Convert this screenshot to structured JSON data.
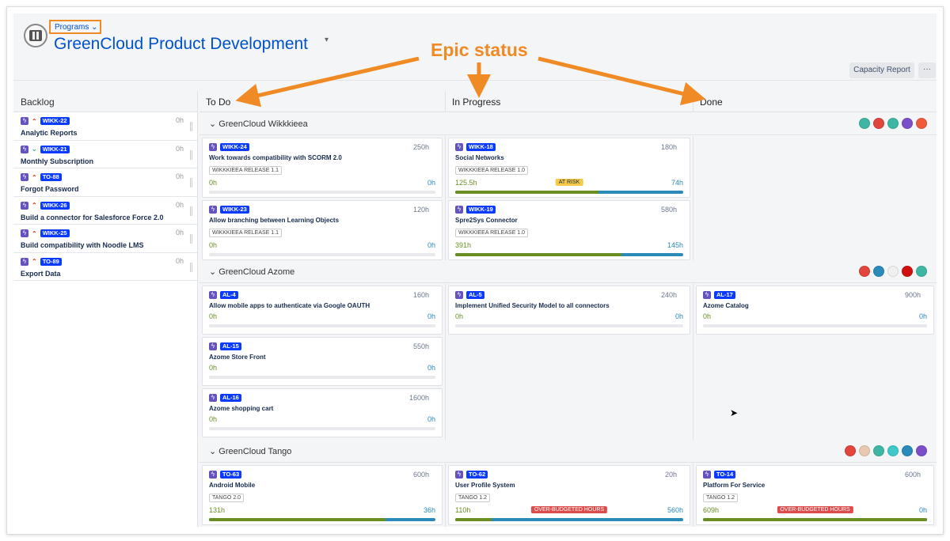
{
  "header": {
    "programs_label": "Programs",
    "title": "GreenCloud Product Development",
    "capacity_report": "Capacity Report",
    "more": "···"
  },
  "annotation": {
    "text": "Epic status",
    "color": "#f08a24"
  },
  "colors": {
    "accent": "#0052cc",
    "spent": "#6b8e23",
    "remaining": "#2a8ab8",
    "epic": "#6554c0",
    "key": "#0b3bff",
    "at_risk": "#f7c948",
    "over_budget": "#de4b4b"
  },
  "backlog": {
    "title": "Backlog",
    "items": [
      {
        "key": "WIKK-22",
        "title": "Analytic Reports",
        "hours": "0h",
        "priority": "highest"
      },
      {
        "key": "WIKK-21",
        "title": "Monthly Subscription",
        "hours": "0h",
        "priority": "lowest"
      },
      {
        "key": "TO-88",
        "title": "Forgot Password",
        "hours": "0h",
        "priority": "highest"
      },
      {
        "key": "WIKK-26",
        "title": "Build a connector for Salesforce Force 2.0",
        "hours": "0h",
        "priority": "highest"
      },
      {
        "key": "WIKK-25",
        "title": "Build compatibility with Noodle LMS",
        "hours": "0h",
        "priority": "highest"
      },
      {
        "key": "TO-89",
        "title": "Export Data",
        "hours": "0h",
        "priority": "highest"
      }
    ]
  },
  "columns": [
    "To Do",
    "In Progress",
    "Done"
  ],
  "groups": [
    {
      "name": "GreenCloud Wikkkieea",
      "avatars": [
        "#3fb5a3",
        "#e2453c",
        "#3fb5a3",
        "#7b4fc9",
        "#ef5a3c"
      ],
      "columns": [
        [
          {
            "key": "WIKK-24",
            "title": "Work towards compatibility with SCORM 2.0",
            "hours": "250h",
            "release": "WIKKKIEEA RELEASE 1.1",
            "spent": "0h",
            "remaining": "0h",
            "progress": 0
          },
          {
            "key": "WIKK-23",
            "title": "Allow branching between Learning Objects",
            "hours": "120h",
            "release": "WIKKKIEEA RELEASE 1.1",
            "spent": "0h",
            "remaining": "0h",
            "progress": 0
          }
        ],
        [
          {
            "key": "WIKK-18",
            "title": "Social Networks",
            "hours": "180h",
            "release": "WIKKKIEEA RELEASE 1.0",
            "spent": "125.5h",
            "remaining": "74h",
            "progress": 0.63,
            "badge": "AT RISK",
            "badge_type": "at_risk"
          },
          {
            "key": "WIKK-19",
            "title": "Spre2Sys Connector",
            "hours": "580h",
            "release": "WIKKKIEEA RELEASE 1.0",
            "spent": "391h",
            "remaining": "145h",
            "progress": 0.73
          }
        ],
        []
      ]
    },
    {
      "name": "GreenCloud Azome",
      "avatars": [
        "#e2453c",
        "#2a8ab8",
        "#f0f0f0",
        "#d01010",
        "#3fb5a3"
      ],
      "columns": [
        [
          {
            "key": "AL-4",
            "title": "Allow mobile apps to authenticate via Google OAUTH",
            "hours": "160h",
            "spent": "0h",
            "remaining": "0h",
            "progress": 0
          },
          {
            "key": "AL-15",
            "title": "Azome Store Front",
            "hours": "550h",
            "spent": "0h",
            "remaining": "0h",
            "progress": 0
          },
          {
            "key": "AL-16",
            "title": "Azome shopping cart",
            "hours": "1600h",
            "spent": "0h",
            "remaining": "0h",
            "progress": 0
          }
        ],
        [
          {
            "key": "AL-5",
            "title": "Implement Unified Security Model to all connectors",
            "hours": "240h",
            "spent": "0h",
            "remaining": "0h",
            "progress": 0
          }
        ],
        [
          {
            "key": "AL-17",
            "title": "Azome Catalog",
            "hours": "900h",
            "spent": "0h",
            "remaining": "0h",
            "progress": 0
          }
        ]
      ]
    },
    {
      "name": "GreenCloud Tango",
      "avatars": [
        "#e2453c",
        "#e8c8b0",
        "#3fb5a3",
        "#3fc8c8",
        "#2a8ab8",
        "#7b4fc9"
      ],
      "columns": [
        [
          {
            "key": "TO-63",
            "title": "Android Mobile",
            "hours": "600h",
            "release": "TANGO 2.0",
            "spent": "131h",
            "remaining": "36h",
            "progress": 0.78
          }
        ],
        [
          {
            "key": "TO-62",
            "title": "User Profile System",
            "hours": "20h",
            "release": "TANGO 1.2",
            "spent": "110h",
            "remaining": "560h",
            "progress": 0.16,
            "badge": "OVER-BUDGETED HOURS",
            "badge_type": "over_budget"
          }
        ],
        [
          {
            "key": "TO-14",
            "title": "Platform For Service",
            "hours": "600h",
            "release": "TANGO 1.2",
            "spent": "609h",
            "remaining": "0h",
            "progress": 1,
            "badge": "OVER-BUDGETED HOURS",
            "badge_type": "over_budget"
          }
        ]
      ]
    }
  ]
}
